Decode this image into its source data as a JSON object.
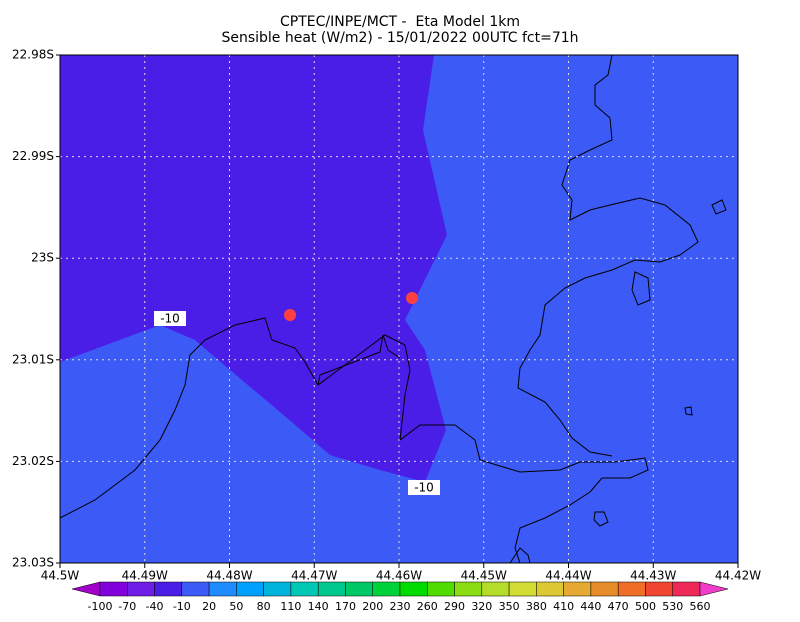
{
  "chart_data": {
    "type": "contour-map",
    "title": "CPTEC/INPE/MCT -  Eta Model 1km",
    "subtitle": "Sensible heat (W/m2) - 15/01/2022 00UTC fct=71h",
    "xlim": [
      -44.5,
      -44.42
    ],
    "ylim": [
      -23.03,
      -22.98
    ],
    "xticks": [
      {
        "value": -44.5,
        "label": "44.5W"
      },
      {
        "value": -44.49,
        "label": "44.49W"
      },
      {
        "value": -44.48,
        "label": "44.48W"
      },
      {
        "value": -44.47,
        "label": "44.47W"
      },
      {
        "value": -44.46,
        "label": "44.46W"
      },
      {
        "value": -44.45,
        "label": "44.45W"
      },
      {
        "value": -44.44,
        "label": "44.44W"
      },
      {
        "value": -44.43,
        "label": "44.43W"
      },
      {
        "value": -44.42,
        "label": "44.42W"
      }
    ],
    "yticks": [
      {
        "value": -22.98,
        "label": "22.98S"
      },
      {
        "value": -22.99,
        "label": "22.99S"
      },
      {
        "value": -23.0,
        "label": "23S"
      },
      {
        "value": -23.01,
        "label": "23.01S"
      },
      {
        "value": -23.02,
        "label": "23.02S"
      },
      {
        "value": -23.03,
        "label": "23.03S"
      }
    ],
    "grid": true,
    "contour_labels": [
      -10,
      -10
    ],
    "colorbar_levels": [
      -100,
      -70,
      -40,
      -10,
      20,
      50,
      80,
      110,
      140,
      170,
      200,
      230,
      260,
      290,
      320,
      350,
      380,
      410,
      440,
      470,
      500,
      530,
      560
    ],
    "colorbar_colors": [
      "#a000c8",
      "#8200dc",
      "#6e1ee6",
      "#4b1ee8",
      "#3c5af5",
      "#1e8cff",
      "#00a0ff",
      "#00b4dc",
      "#00c8b4",
      "#00c88c",
      "#00c864",
      "#00d23c",
      "#00dc00",
      "#50dc00",
      "#8cdc14",
      "#b4dc28",
      "#d2dc32",
      "#dcc832",
      "#e6aa32",
      "#e68c28",
      "#f06e28",
      "#f04632",
      "#f0285a",
      "#f03cc8"
    ]
  }
}
